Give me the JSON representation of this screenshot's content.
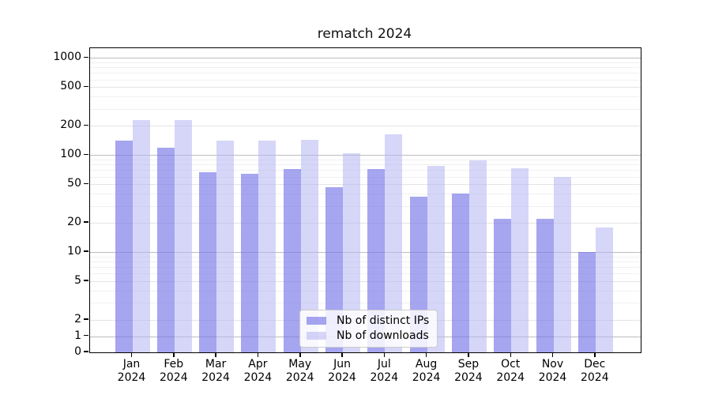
{
  "title": "rematch 2024",
  "chart_data": {
    "type": "bar",
    "title": "rematch 2024",
    "categories": [
      {
        "month": "Jan",
        "year": "2024"
      },
      {
        "month": "Feb",
        "year": "2024"
      },
      {
        "month": "Mar",
        "year": "2024"
      },
      {
        "month": "Apr",
        "year": "2024"
      },
      {
        "month": "May",
        "year": "2024"
      },
      {
        "month": "Jun",
        "year": "2024"
      },
      {
        "month": "Jul",
        "year": "2024"
      },
      {
        "month": "Aug",
        "year": "2024"
      },
      {
        "month": "Sep",
        "year": "2024"
      },
      {
        "month": "Oct",
        "year": "2024"
      },
      {
        "month": "Nov",
        "year": "2024"
      },
      {
        "month": "Dec",
        "year": "2024"
      }
    ],
    "series": [
      {
        "name": "Nb of distinct IPs",
        "color": "rgba(116,116,232,0.65)",
        "color_hex_approx": "#a5a5f0",
        "values": [
          140,
          120,
          66,
          64,
          72,
          47,
          72,
          37,
          40,
          22,
          22,
          10
        ]
      },
      {
        "name": "Nb of downloads",
        "color": "rgba(180,180,242,0.55)",
        "color_hex_approx": "#d6d6f8",
        "values": [
          230,
          230,
          140,
          142,
          143,
          105,
          165,
          78,
          88,
          73,
          60,
          18
        ]
      }
    ],
    "yscale": "symlog",
    "ylim": [
      0,
      1260
    ],
    "ytick_values": [
      1000,
      500,
      200,
      100,
      50,
      20,
      10,
      5,
      2,
      1,
      0
    ],
    "ytick_labels": [
      "1000",
      "500",
      "200",
      "100",
      "50",
      "20",
      "10",
      "5",
      "2",
      "1",
      "0"
    ],
    "xlabel": "",
    "ylabel": "",
    "grid": true,
    "legend_position": "lower center"
  }
}
